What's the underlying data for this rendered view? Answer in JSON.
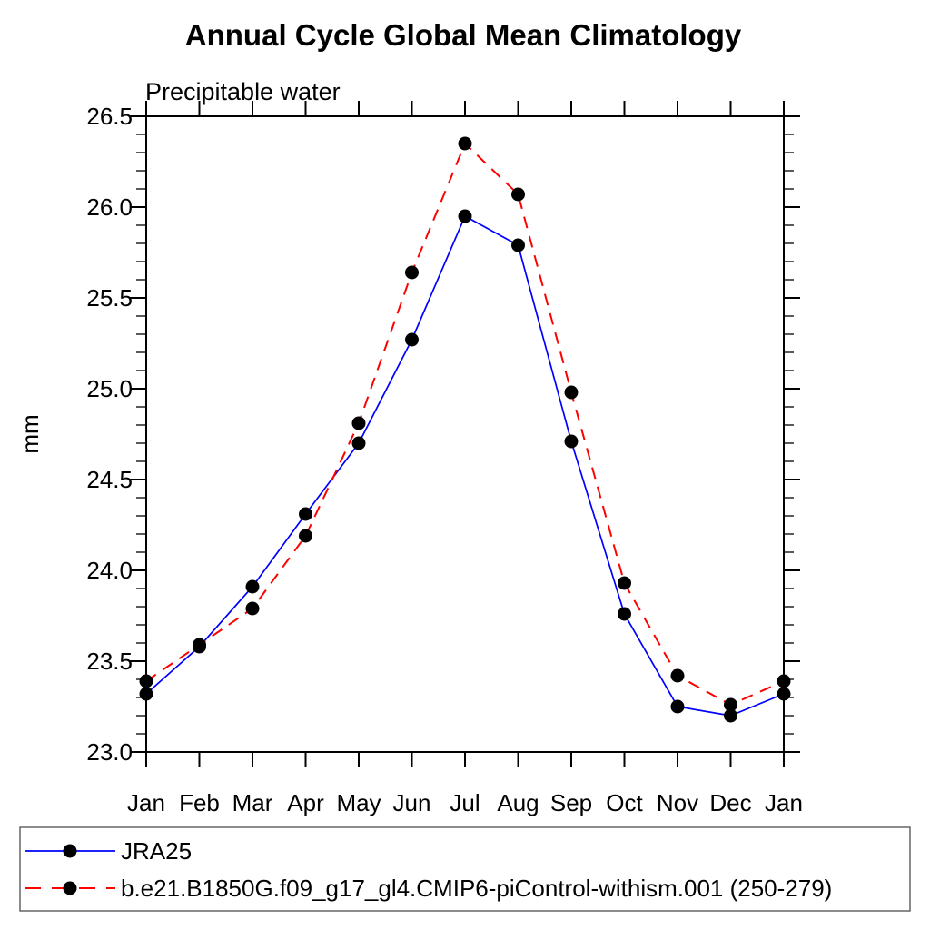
{
  "chart_data": {
    "type": "line",
    "title": "Annual Cycle Global Mean Climatology",
    "subtitle": "Precipitable water",
    "xlabel": "",
    "ylabel": "mm",
    "categories": [
      "Jan",
      "Feb",
      "Mar",
      "Apr",
      "May",
      "Jun",
      "Jul",
      "Aug",
      "Sep",
      "Oct",
      "Nov",
      "Dec",
      "Jan"
    ],
    "ylim": [
      23.0,
      26.5
    ],
    "y_major_tick_step": 0.5,
    "y_minor_tick_step": 0.1,
    "y_major_ticks": [
      "23.0",
      "23.5",
      "24.0",
      "24.5",
      "25.0",
      "25.5",
      "26.0",
      "26.5"
    ],
    "grid": false,
    "legend_position": "bottom",
    "series": [
      {
        "name": "JRA25",
        "color": "#0000ff",
        "line_style": "solid",
        "marker": "filled-black-circle",
        "values": [
          23.32,
          23.58,
          23.91,
          24.31,
          24.7,
          25.27,
          25.95,
          25.79,
          24.71,
          23.76,
          23.25,
          23.2,
          23.32
        ]
      },
      {
        "name": "b.e21.B1850G.f09_g17_gl4.CMIP6-piControl-withism.001 (250-279)",
        "color": "#ff0000",
        "line_style": "dashed",
        "marker": "filled-black-circle",
        "values": [
          23.39,
          23.59,
          23.79,
          24.19,
          24.81,
          25.64,
          26.35,
          26.07,
          24.98,
          23.93,
          23.42,
          23.26,
          23.39
        ]
      }
    ],
    "colors": {
      "axis": "#000000",
      "text": "#000000",
      "background": "#ffffff",
      "marker": "#000000",
      "legend_border": "#666666"
    }
  }
}
